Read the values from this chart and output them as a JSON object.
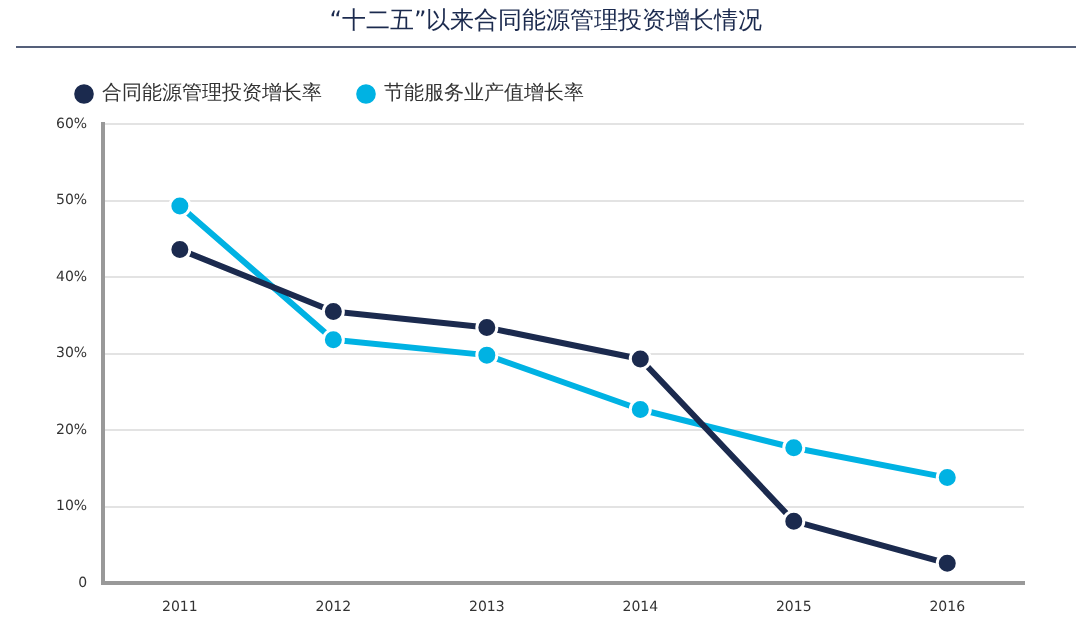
{
  "chart_data": {
    "type": "line",
    "title": "“十二五”以来合同能源管理投资增长情况",
    "categories": [
      "2011",
      "2012",
      "2013",
      "2014",
      "2015",
      "2016"
    ],
    "series": [
      {
        "name": "合同能源管理投资增长率",
        "color": "#1b2a4e",
        "values": [
          43.6,
          35.5,
          33.4,
          29.3,
          8.1,
          2.6
        ]
      },
      {
        "name": "节能服务业产值增长率",
        "color": "#00b2e3",
        "values": [
          49.3,
          31.8,
          29.8,
          22.7,
          17.7,
          13.8
        ]
      }
    ],
    "ylim": [
      0,
      60
    ],
    "yticks": [
      {
        "value": 0,
        "label": "0"
      },
      {
        "value": 10,
        "label": "10%"
      },
      {
        "value": 20,
        "label": "20%"
      },
      {
        "value": 30,
        "label": "30%"
      },
      {
        "value": 40,
        "label": "40%"
      },
      {
        "value": 50,
        "label": "50%"
      },
      {
        "value": 60,
        "label": "60%"
      }
    ],
    "grid": "y",
    "legend": "top left",
    "marker": "circle",
    "line_style": "solid"
  }
}
